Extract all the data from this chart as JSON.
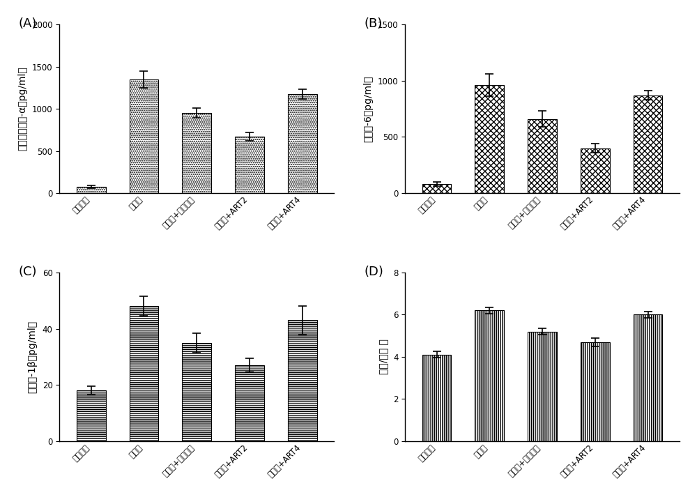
{
  "categories": [
    "生理盐水",
    "脂多糖",
    "脂多糖+青蕿琅酯",
    "脂多糖+ART2",
    "脂多糖+ART4"
  ],
  "A": {
    "values": [
      75,
      1350,
      950,
      670,
      1175
    ],
    "errors": [
      15,
      100,
      60,
      50,
      60
    ],
    "ylabel": "肿瘾坏死因子-α（pg/ml）",
    "ylim": [
      0,
      2000
    ],
    "yticks": [
      0,
      500,
      1000,
      1500,
      2000
    ],
    "label": "(A)"
  },
  "B": {
    "values": [
      80,
      960,
      660,
      400,
      870
    ],
    "errors": [
      20,
      100,
      70,
      40,
      40
    ],
    "ylabel": "白介素-6（pg/ml）",
    "ylim": [
      0,
      1500
    ],
    "yticks": [
      0,
      500,
      1000,
      1500
    ],
    "label": "(B)"
  },
  "C": {
    "values": [
      18,
      48,
      35,
      27,
      43
    ],
    "errors": [
      1.5,
      3.5,
      3.5,
      2.5,
      5.0
    ],
    "ylabel": "白介素-1β（pg/ml）",
    "ylim": [
      0,
      60
    ],
    "yticks": [
      0,
      20,
      40,
      60
    ],
    "label": "(C)"
  },
  "D": {
    "values": [
      4.1,
      6.2,
      5.2,
      4.7,
      6.0
    ],
    "errors": [
      0.15,
      0.15,
      0.15,
      0.2,
      0.15
    ],
    "ylabel": "脾脏/干重 比",
    "ylim": [
      0,
      8
    ],
    "yticks": [
      0,
      2,
      4,
      6,
      8
    ],
    "label": "(D)"
  },
  "bar_width": 0.55,
  "background_color": "#ffffff",
  "bar_color": "#ffffff",
  "bar_edgecolor": "#000000",
  "fontsize_ylabel": 10,
  "fontsize_tick": 8.5,
  "fontsize_panel": 13
}
